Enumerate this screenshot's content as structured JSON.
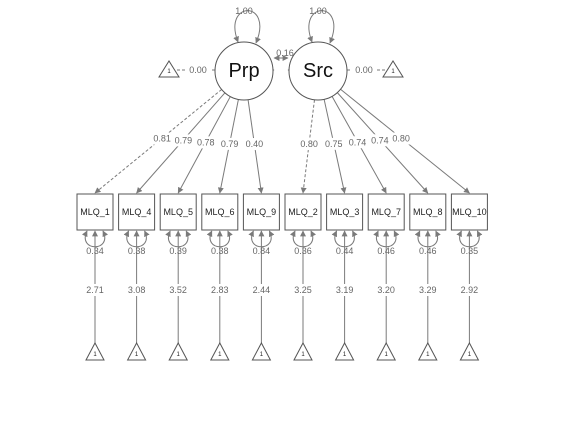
{
  "latents": [
    {
      "id": "Prp",
      "label": "Prp",
      "variance": "1.00",
      "mean_label": "0.00",
      "triangle_label": "1"
    },
    {
      "id": "Src",
      "label": "Src",
      "variance": "1.00",
      "mean_label": "0.00",
      "triangle_label": "1"
    }
  ],
  "covariance": {
    "label": "0.16"
  },
  "indicators": [
    {
      "id": "MLQ_1",
      "label": "MLQ_1",
      "factor": "Prp",
      "loading": "0.81",
      "dashed": true,
      "residual": "0.34",
      "intercept": "2.71",
      "triangle_label": "1"
    },
    {
      "id": "MLQ_4",
      "label": "MLQ_4",
      "factor": "Prp",
      "loading": "0.79",
      "dashed": false,
      "residual": "0.38",
      "intercept": "3.08",
      "triangle_label": "1"
    },
    {
      "id": "MLQ_5",
      "label": "MLQ_5",
      "factor": "Prp",
      "loading": "0.78",
      "dashed": false,
      "residual": "0.39",
      "intercept": "3.52",
      "triangle_label": "1"
    },
    {
      "id": "MLQ_6",
      "label": "MLQ_6",
      "factor": "Prp",
      "loading": "0.79",
      "dashed": false,
      "residual": "0.38",
      "intercept": "2.83",
      "triangle_label": "1"
    },
    {
      "id": "MLQ_9",
      "label": "MLQ_9",
      "factor": "Prp",
      "loading": "0.40",
      "dashed": false,
      "residual": "0.84",
      "intercept": "2.44",
      "triangle_label": "1"
    },
    {
      "id": "MLQ_2",
      "label": "MLQ_2",
      "factor": "Src",
      "loading": "0.80",
      "dashed": true,
      "residual": "0.36",
      "intercept": "3.25",
      "triangle_label": "1"
    },
    {
      "id": "MLQ_3",
      "label": "MLQ_3",
      "factor": "Src",
      "loading": "0.75",
      "dashed": false,
      "residual": "0.44",
      "intercept": "3.19",
      "triangle_label": "1"
    },
    {
      "id": "MLQ_7",
      "label": "MLQ_7",
      "factor": "Src",
      "loading": "0.74",
      "dashed": false,
      "residual": "0.46",
      "intercept": "3.20",
      "triangle_label": "1"
    },
    {
      "id": "MLQ_8",
      "label": "MLQ_8",
      "factor": "Src",
      "loading": "0.74",
      "dashed": false,
      "residual": "0.46",
      "intercept": "3.29",
      "triangle_label": "1"
    },
    {
      "id": "MLQ_10",
      "label": "MLQ_10",
      "factor": "Src",
      "loading": "0.80",
      "dashed": false,
      "residual": "0.35",
      "intercept": "2.92",
      "triangle_label": "1"
    }
  ],
  "colors": {
    "edge": "#7a7a7a",
    "node_stroke": "#555555",
    "label": "#666666"
  }
}
